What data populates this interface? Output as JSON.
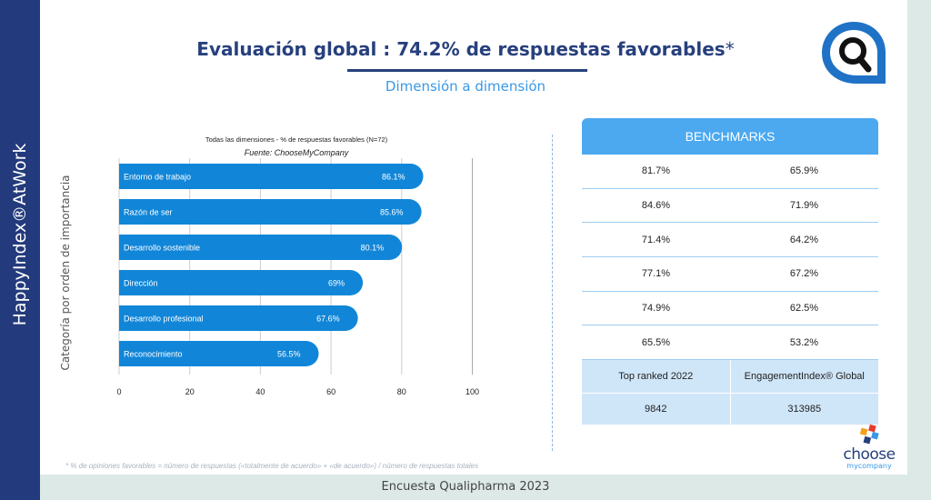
{
  "sidebar": {
    "label": "HappyIndex®AtWork"
  },
  "header": {
    "title": "Evaluación global : 74.2% de respuestas favorables",
    "title_mark": "*",
    "subtitle": "Dimensión a dimensión"
  },
  "chart_data": {
    "type": "bar",
    "orientation": "horizontal",
    "title": "Todas las dimensiones - % de respuestas favorables (N=72)",
    "subtitle": "Fuente: ChooseMyCompany",
    "ylabel": "Categoría por orden de importancia",
    "xlabel": "",
    "xlim": [
      0,
      100
    ],
    "xticks": [
      0,
      20,
      40,
      60,
      80,
      100
    ],
    "categories": [
      "Entorno de trabajo",
      "Razón de ser",
      "Desarrollo sostenible",
      "Dirección",
      "Desarrollo profesional",
      "Reconocimiento"
    ],
    "values": [
      86.1,
      85.6,
      80.1,
      69,
      67.6,
      56.5
    ],
    "value_labels": [
      "86.1%",
      "85.6%",
      "80.1%",
      "69%",
      "67.6%",
      "56.5%"
    ],
    "bar_color": "#1186d8",
    "grid": true
  },
  "benchmarks": {
    "title": "BENCHMARKS",
    "rows": [
      [
        "81.7%",
        "65.9%"
      ],
      [
        "84.6%",
        "71.9%"
      ],
      [
        "71.4%",
        "64.2%"
      ],
      [
        "77.1%",
        "67.2%"
      ],
      [
        "74.9%",
        "62.5%"
      ],
      [
        "65.5%",
        "53.2%"
      ]
    ],
    "footer_labels": [
      "Top ranked 2022",
      "EngagementIndex® Global"
    ],
    "footer_values": [
      "9842",
      "313985"
    ]
  },
  "footnote": "* % de opiniones favorables = número de respuestas («totalmente de acuerdo» + «de acuerdo») / número de respuestas totales",
  "bottom_caption": "Encuesta Qualipharma 2023",
  "logo": {
    "line1": "choose",
    "line2": "mycompany"
  },
  "colors": {
    "navy": "#233a7c",
    "accent": "#3a98e6",
    "bar": "#1186d8",
    "bench_header": "#4ca8ef",
    "bench_footer": "#cfe6f9"
  }
}
